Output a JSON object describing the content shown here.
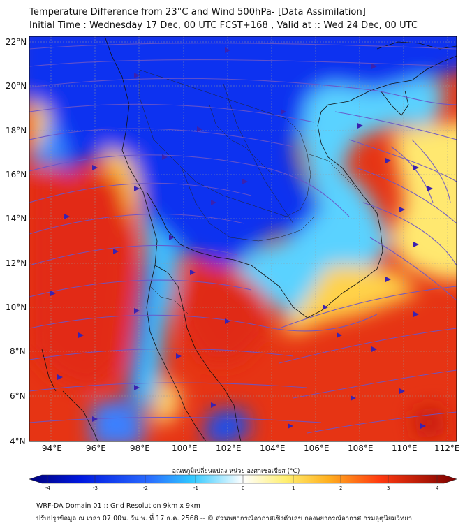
{
  "header": {
    "title_line1": "Temperature Difference from 23°C and Wind 500hPa- [Data Assimilation]",
    "title_line2": "Initial Time : Wednesday 17 Dec, 00 UTC FCST+168 , Valid at ::  Wed 24 Dec, 00 UTC"
  },
  "map": {
    "lat_labels": [
      "22°N",
      "20°N",
      "18°N",
      "16°N",
      "14°N",
      "12°N",
      "10°N",
      "8°N",
      "6°N",
      "4°N"
    ],
    "lon_labels": [
      "94°E",
      "96°E",
      "98°E",
      "100°E",
      "102°E",
      "104°E",
      "106°E",
      "108°E",
      "110°E",
      "112°E"
    ],
    "lat_values": [
      22,
      20,
      18,
      16,
      14,
      12,
      10,
      8,
      6,
      4
    ],
    "lon_values": [
      94,
      96,
      98,
      100,
      102,
      104,
      106,
      108,
      110,
      112
    ],
    "lat_range": [
      4,
      22
    ],
    "lon_range": [
      93,
      113
    ],
    "grid": true,
    "colors": {
      "cold": "#0a36f0",
      "mid": "#4ccfff",
      "warm": "#f03a14",
      "hot": "#c01010",
      "neutral": "#fff59a",
      "streamline": "#6a55c8"
    }
  },
  "colorbar": {
    "label": "อุณหภูมิเปลี่ยนแปลง หน่วย องศาเซลเซียส (°C)",
    "ticks": [
      "-4",
      "-3",
      "-2",
      "-1",
      "0",
      "1",
      "2",
      "3",
      "4"
    ],
    "tick_values": [
      -4,
      -3,
      -2,
      -1,
      0,
      1,
      2,
      3,
      4
    ],
    "range": [
      -4,
      4
    ]
  },
  "footer": {
    "line1": "WRF-DA Domain 01 :: Grid Resolution 9km x 9km",
    "line2": "ปรับปรุงข้อมูล ณ เวลา 07:00น. วัน พ. ที่ 17 ธ.ค. 2568 -- © ส่วนพยากรณ์อากาศเชิงตัวเลข กองพยากรณ์อากาศ กรมอุตุนิยมวิทยา"
  }
}
